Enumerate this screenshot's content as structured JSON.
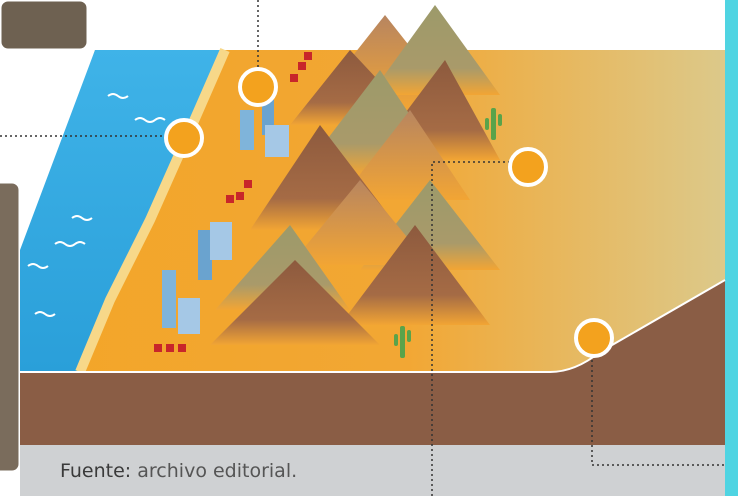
{
  "source": {
    "label": "Fuente:",
    "text": "archivo editorial."
  }
}
